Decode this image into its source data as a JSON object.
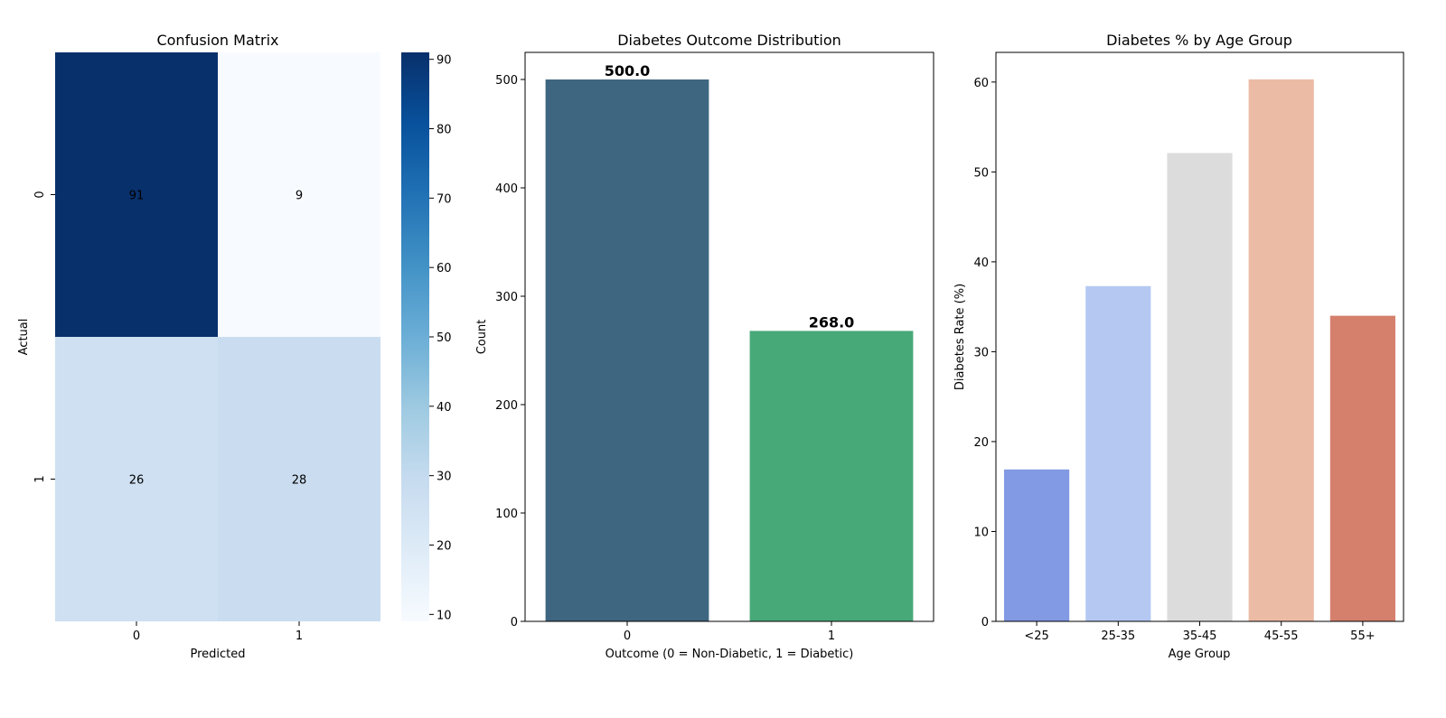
{
  "chart_data": [
    {
      "type": "heatmap",
      "title": "Confusion Matrix",
      "xlabel": "Predicted",
      "ylabel": "Actual",
      "x_categories": [
        "0",
        "1"
      ],
      "y_categories": [
        "0",
        "1"
      ],
      "matrix": [
        [
          91,
          9
        ],
        [
          26,
          28
        ]
      ],
      "colormap": "Blues",
      "colorbar": {
        "min": 9,
        "max": 91,
        "ticks": [
          10,
          20,
          30,
          40,
          50,
          60,
          70,
          80,
          90
        ]
      }
    },
    {
      "type": "bar",
      "title": "Diabetes Outcome Distribution",
      "xlabel": "Outcome (0 = Non-Diabetic, 1 = Diabetic)",
      "ylabel": "Count",
      "categories": [
        "0",
        "1"
      ],
      "values": [
        500,
        268
      ],
      "data_labels": [
        "500.0",
        "268.0"
      ],
      "colors": [
        "#3f6680",
        "#47a978"
      ],
      "ylim": [
        0,
        525
      ],
      "yticks": [
        0,
        100,
        200,
        300,
        400,
        500
      ]
    },
    {
      "type": "bar",
      "title": "Diabetes % by Age Group",
      "xlabel": "Age Group",
      "ylabel": "Diabetes Rate (%)",
      "categories": [
        "<25",
        "25-35",
        "35-45",
        "45-55",
        "55+"
      ],
      "values": [
        16.9,
        37.3,
        52.1,
        60.3,
        34.0
      ],
      "colors": [
        "#8299e3",
        "#b4c8f2",
        "#dcdcdc",
        "#ecbba5",
        "#d5806d"
      ],
      "ylim": [
        0,
        63.3
      ],
      "yticks": [
        0,
        10,
        20,
        30,
        40,
        50,
        60
      ]
    }
  ]
}
